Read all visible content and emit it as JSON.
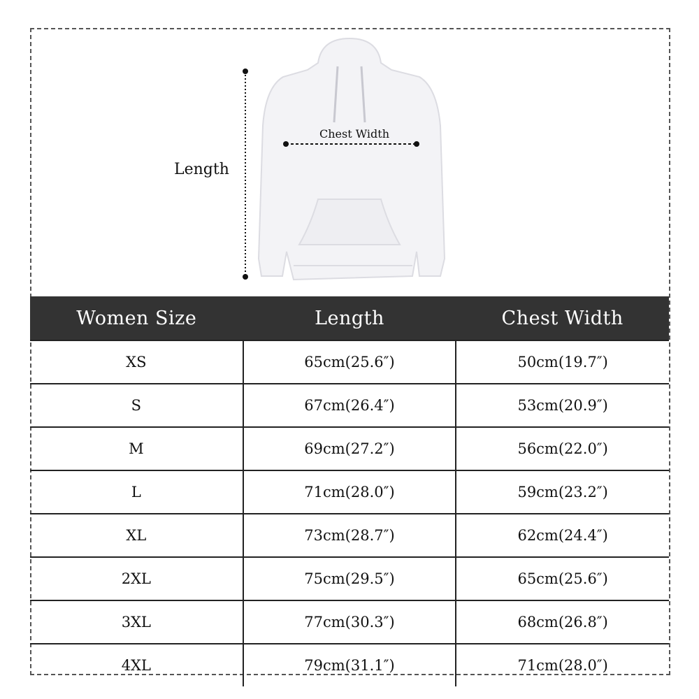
{
  "diagram": {
    "length_label": "Length",
    "chest_label": "Chest Width"
  },
  "table": {
    "headers": [
      "Women Size",
      "Length",
      "Chest Width"
    ],
    "rows": [
      [
        "XS",
        "65cm(25.6″)",
        "50cm(19.7″)"
      ],
      [
        "S",
        "67cm(26.4″)",
        "53cm(20.9″)"
      ],
      [
        "M",
        "69cm(27.2″)",
        "56cm(22.0″)"
      ],
      [
        "L",
        "71cm(28.0″)",
        "59cm(23.2″)"
      ],
      [
        "XL",
        "73cm(28.7″)",
        "62cm(24.4″)"
      ],
      [
        "2XL",
        "75cm(29.5″)",
        "65cm(25.6″)"
      ],
      [
        "3XL",
        "77cm(30.3″)",
        "68cm(26.8″)"
      ],
      [
        "4XL",
        "79cm(31.1″)",
        "71cm(28.0″)"
      ]
    ]
  }
}
